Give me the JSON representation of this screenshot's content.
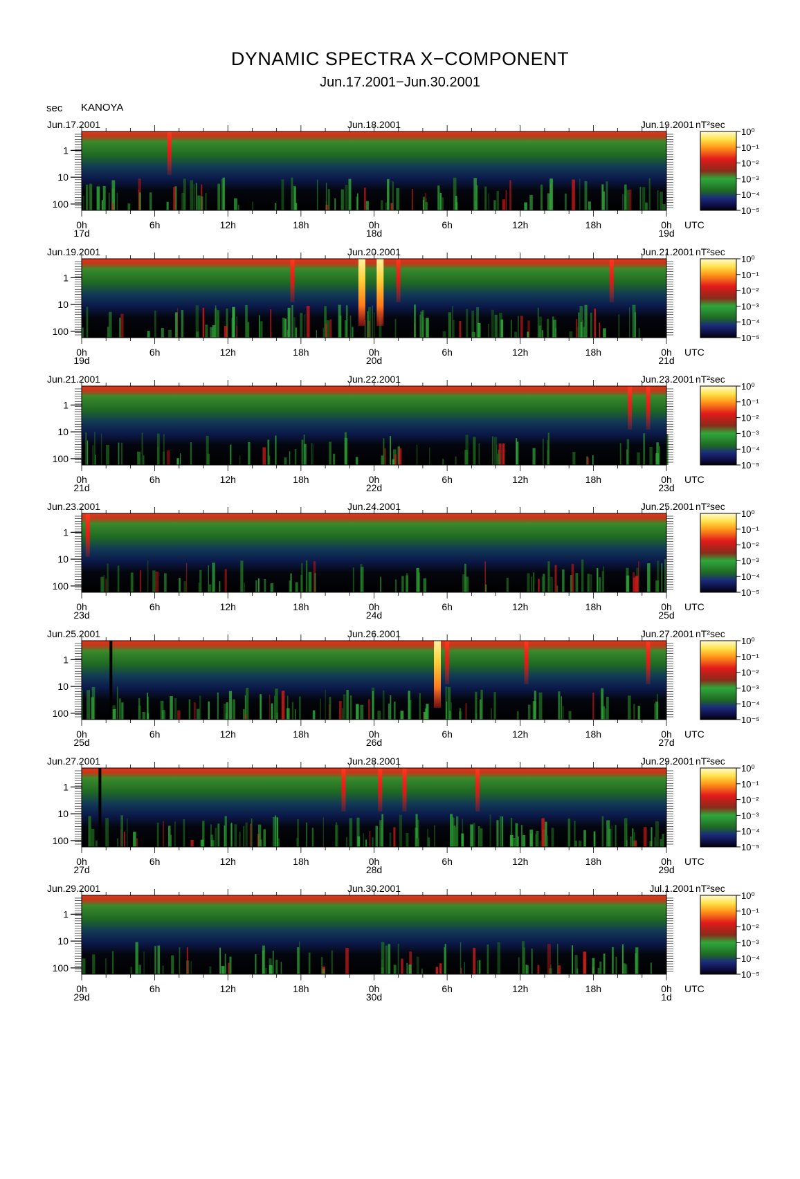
{
  "title": "DYNAMIC SPECTRA X−COMPONENT",
  "subtitle": "Jun.17.2001−Jun.30.2001",
  "y_unit": "sec",
  "station": "KANOYA",
  "colorbar_unit": "nT²sec",
  "colorbar_ticks": [
    "10⁰",
    "10⁻¹",
    "10⁻²",
    "10⁻³",
    "10⁻⁴",
    "10⁻⁵"
  ],
  "colors": {
    "background": "#000000",
    "noise": "#1a1a6e",
    "low": "#1f6e1f",
    "mid": "#2fa83a",
    "high": "#d11a1a",
    "peak": "#ffe24a"
  },
  "chart_data": [
    {
      "type": "heatmap",
      "title": "",
      "ylabel": "sec",
      "y_ticks": [
        "1",
        "10",
        "100"
      ],
      "x_ticks": [
        "0h",
        "6h",
        "12h",
        "18h",
        "0h",
        "6h",
        "12h",
        "18h",
        "0h"
      ],
      "x_unit": "UTC",
      "date_start": "Jun.17.2001",
      "date_mid": "Jun.18.2001",
      "date_end": "Jun.19.2001",
      "day_start": "17d",
      "day_mid": "18d",
      "day_end": "19d",
      "events": [
        {
          "hour": 7.2,
          "level": "high"
        }
      ],
      "activity": 0.45
    },
    {
      "type": "heatmap",
      "title": "",
      "ylabel": "sec",
      "y_ticks": [
        "1",
        "10",
        "100"
      ],
      "x_ticks": [
        "0h",
        "6h",
        "12h",
        "18h",
        "0h",
        "6h",
        "12h",
        "18h",
        "0h"
      ],
      "x_unit": "UTC",
      "date_start": "Jun.19.2001",
      "date_mid": "Jun.20.2001",
      "date_end": "Jun.21.2001",
      "day_start": "19d",
      "day_mid": "20d",
      "day_end": "21d",
      "events": [
        {
          "hour": 17.3,
          "level": "high"
        },
        {
          "hour": 23.0,
          "level": "peak"
        },
        {
          "hour": 24.5,
          "level": "peak"
        },
        {
          "hour": 26.0,
          "level": "high"
        },
        {
          "hour": 43.5,
          "level": "high"
        }
      ],
      "activity": 0.5
    },
    {
      "type": "heatmap",
      "title": "",
      "ylabel": "sec",
      "y_ticks": [
        "1",
        "10",
        "100"
      ],
      "x_ticks": [
        "0h",
        "6h",
        "12h",
        "18h",
        "0h",
        "6h",
        "12h",
        "18h",
        "0h"
      ],
      "x_unit": "UTC",
      "date_start": "Jun.21.2001",
      "date_mid": "Jun.22.2001",
      "date_end": "Jun.23.2001",
      "day_start": "21d",
      "day_mid": "22d",
      "day_end": "23d",
      "events": [
        {
          "hour": 45.0,
          "level": "high"
        },
        {
          "hour": 46.5,
          "level": "high"
        }
      ],
      "activity": 0.3
    },
    {
      "type": "heatmap",
      "title": "",
      "ylabel": "sec",
      "y_ticks": [
        "1",
        "10",
        "100"
      ],
      "x_ticks": [
        "0h",
        "6h",
        "12h",
        "18h",
        "0h",
        "6h",
        "12h",
        "18h",
        "0h"
      ],
      "x_unit": "UTC",
      "date_start": "Jun.23.2001",
      "date_mid": "Jun.24.2001",
      "date_end": "Jun.25.2001",
      "day_start": "23d",
      "day_mid": "24d",
      "day_end": "25d",
      "events": [
        {
          "hour": 0.5,
          "level": "high"
        }
      ],
      "activity": 0.3
    },
    {
      "type": "heatmap",
      "title": "",
      "ylabel": "sec",
      "y_ticks": [
        "1",
        "10",
        "100"
      ],
      "x_ticks": [
        "0h",
        "6h",
        "12h",
        "18h",
        "0h",
        "6h",
        "12h",
        "18h",
        "0h"
      ],
      "x_unit": "UTC",
      "date_start": "Jun.25.2001",
      "date_mid": "Jun.26.2001",
      "date_end": "Jun.27.2001",
      "day_start": "25d",
      "day_mid": "26d",
      "day_end": "27d",
      "events": [
        {
          "hour": 29.2,
          "level": "peak"
        },
        {
          "hour": 30.0,
          "level": "high"
        },
        {
          "hour": 36.5,
          "level": "high"
        },
        {
          "hour": 46.5,
          "level": "high"
        }
      ],
      "gaps": [
        2.4
      ],
      "activity": 0.45
    },
    {
      "type": "heatmap",
      "title": "",
      "ylabel": "sec",
      "y_ticks": [
        "1",
        "10",
        "100"
      ],
      "x_ticks": [
        "0h",
        "6h",
        "12h",
        "18h",
        "0h",
        "6h",
        "12h",
        "18h",
        "0h"
      ],
      "x_unit": "UTC",
      "date_start": "Jun.27.2001",
      "date_mid": "Jun.28.2001",
      "date_end": "Jun.29.2001",
      "day_start": "27d",
      "day_mid": "28d",
      "day_end": "29d",
      "events": [
        {
          "hour": 21.5,
          "level": "high"
        },
        {
          "hour": 24.5,
          "level": "high"
        },
        {
          "hour": 26.5,
          "level": "high"
        },
        {
          "hour": 32.5,
          "level": "high"
        }
      ],
      "gaps": [
        1.5
      ],
      "activity": 0.6
    },
    {
      "type": "heatmap",
      "title": "",
      "ylabel": "sec",
      "y_ticks": [
        "1",
        "10",
        "100"
      ],
      "x_ticks": [
        "0h",
        "6h",
        "12h",
        "18h",
        "0h",
        "6h",
        "12h",
        "18h",
        "0h"
      ],
      "x_unit": "UTC",
      "date_start": "Jun.29.2001",
      "date_mid": "Jun.30.2001",
      "date_end": "Jul.1.2001",
      "day_start": "29d",
      "day_mid": "30d",
      "day_end": "1d",
      "events": [],
      "activity": 0.35
    }
  ]
}
